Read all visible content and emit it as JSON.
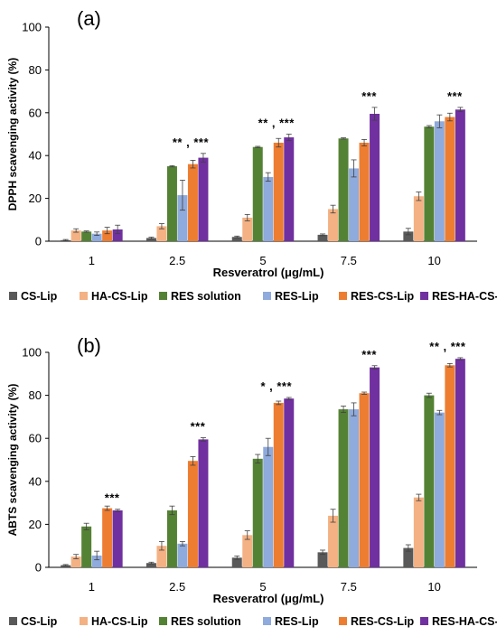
{
  "chart_data": [
    {
      "type": "bar",
      "panel_label": "(a)",
      "ylabel": "DPPH scavenging activity (%)",
      "xlabel": "Resveratrol (μg/mL)",
      "ylim": [
        0,
        100
      ],
      "yticks": [
        "0",
        "20",
        "40",
        "60",
        "80",
        "100"
      ],
      "categories": [
        "1",
        "2.5",
        "5",
        "7.5",
        "10"
      ],
      "series": [
        {
          "name": "CS-Lip",
          "color": "#595959",
          "values": [
            0.5,
            1.5,
            2.0,
            3.0,
            4.5
          ],
          "errors": [
            0.3,
            0.4,
            0.4,
            0.4,
            1.5
          ]
        },
        {
          "name": "HA-CS-Lip",
          "color": "#f4b183",
          "values": [
            5.0,
            7.0,
            11.0,
            15.0,
            21.0
          ],
          "errors": [
            0.8,
            1.2,
            1.5,
            1.8,
            2.0
          ]
        },
        {
          "name": "RES solution",
          "color": "#548235",
          "values": [
            4.5,
            35.0,
            44.0,
            48.0,
            53.5
          ],
          "errors": [
            0.3,
            0.3,
            0.3,
            0.3,
            0.5
          ]
        },
        {
          "name": "RES-Lip",
          "color": "#8faadc",
          "values": [
            3.5,
            21.5,
            30.0,
            34.0,
            56.0
          ],
          "errors": [
            0.8,
            7.0,
            2.0,
            4.0,
            3.0
          ]
        },
        {
          "name": "RES-CS-Lip",
          "color": "#ed7d31",
          "values": [
            5.0,
            36.0,
            46.0,
            46.0,
            58.0
          ],
          "errors": [
            1.5,
            1.8,
            2.0,
            1.5,
            1.8
          ]
        },
        {
          "name": "RES-HA-CS-Lip",
          "color": "#7030a0",
          "values": [
            5.5,
            39.0,
            48.5,
            59.5,
            61.5
          ],
          "errors": [
            2.0,
            2.0,
            1.5,
            3.0,
            1.0
          ]
        }
      ],
      "annotations": [
        {
          "category": "2.5",
          "text": "** , ***"
        },
        {
          "category": "5",
          "text": "** , ***"
        },
        {
          "category": "7.5",
          "text": "***"
        },
        {
          "category": "10",
          "text": "***"
        }
      ],
      "grid": false,
      "legend": "bottom"
    },
    {
      "type": "bar",
      "panel_label": "(b)",
      "ylabel": "ABTS scavenging activity (%)",
      "xlabel": "Resveratrol (μg/mL)",
      "ylim": [
        0,
        100
      ],
      "yticks": [
        "0",
        "20",
        "40",
        "60",
        "80",
        "100"
      ],
      "categories": [
        "1",
        "2.5",
        "5",
        "7.5",
        "10"
      ],
      "series": [
        {
          "name": "CS-Lip",
          "color": "#595959",
          "values": [
            1.0,
            2.0,
            4.5,
            7.0,
            9.0
          ],
          "errors": [
            0.3,
            0.4,
            0.8,
            1.0,
            1.5
          ]
        },
        {
          "name": "HA-CS-Lip",
          "color": "#f4b183",
          "values": [
            5.0,
            10.0,
            15.0,
            24.0,
            32.5
          ],
          "errors": [
            1.0,
            2.0,
            2.0,
            3.0,
            1.5
          ]
        },
        {
          "name": "RES solution",
          "color": "#548235",
          "values": [
            19.0,
            26.5,
            50.5,
            73.5,
            80.0
          ],
          "errors": [
            1.5,
            2.0,
            2.0,
            1.5,
            1.0
          ]
        },
        {
          "name": "RES-Lip",
          "color": "#8faadc",
          "values": [
            5.5,
            11.0,
            56.0,
            73.5,
            72.0
          ],
          "errors": [
            2.0,
            1.0,
            4.0,
            3.0,
            1.0
          ]
        },
        {
          "name": "RES-CS-Lip",
          "color": "#ed7d31",
          "values": [
            27.5,
            49.5,
            76.5,
            81.0,
            94.0
          ],
          "errors": [
            1.0,
            2.0,
            0.8,
            0.5,
            0.8
          ]
        },
        {
          "name": "RES-HA-CS-Lip",
          "color": "#7030a0",
          "values": [
            26.5,
            59.5,
            78.5,
            93.0,
            97.0
          ],
          "errors": [
            0.5,
            0.8,
            0.5,
            0.8,
            0.5
          ]
        }
      ],
      "annotations": [
        {
          "category": "1",
          "text": "***"
        },
        {
          "category": "2.5",
          "text": "***"
        },
        {
          "category": "5",
          "text": "* , ***"
        },
        {
          "category": "7.5",
          "text": "***"
        },
        {
          "category": "10",
          "text": "** , ***"
        }
      ],
      "grid": false,
      "legend": "bottom"
    }
  ]
}
